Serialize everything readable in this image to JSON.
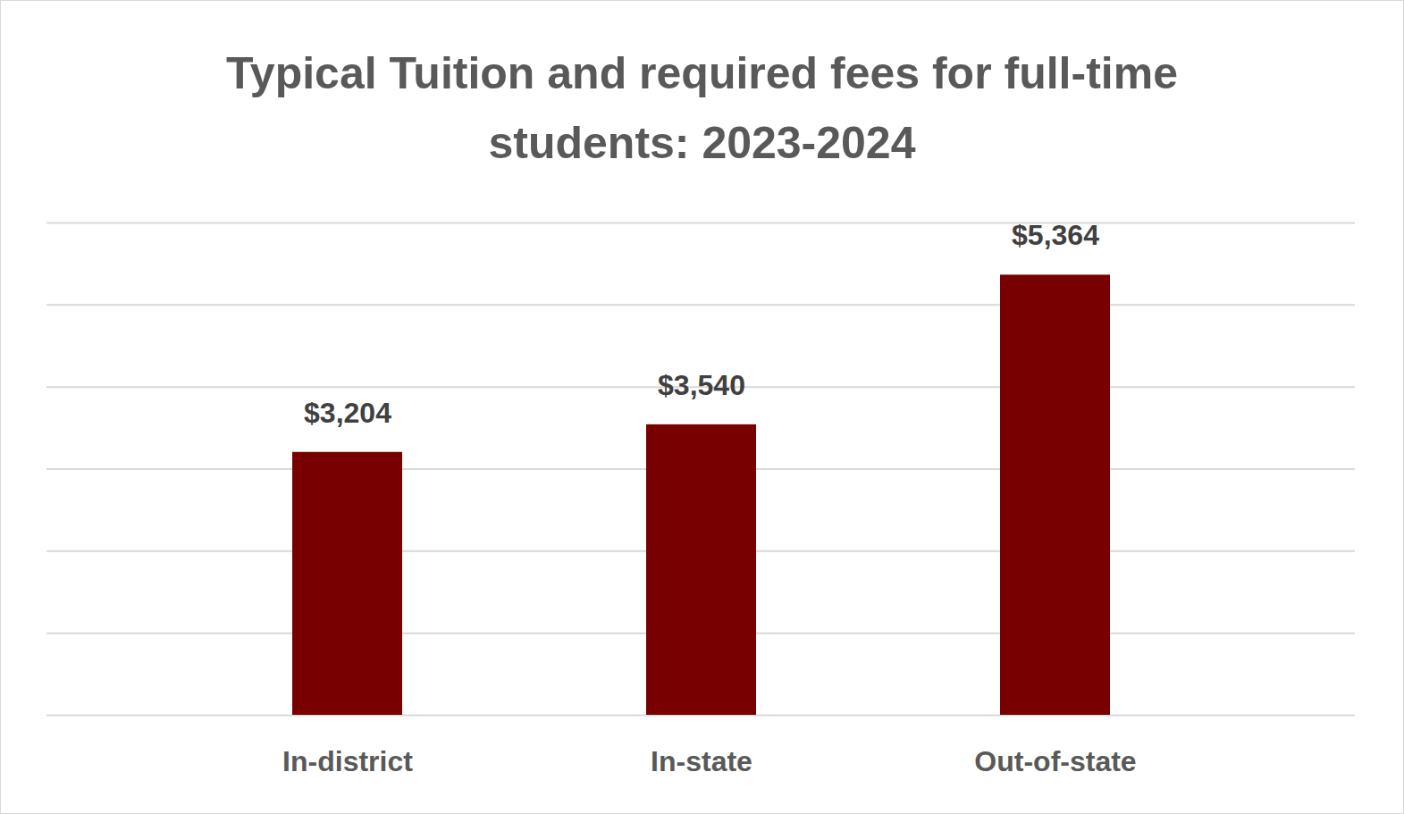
{
  "chart_data": {
    "type": "bar",
    "title": "Typical Tuition and required fees for full-time students: 2023-2024",
    "categories": [
      "In-district",
      "In-state",
      "Out-of-state"
    ],
    "values": [
      3204,
      3540,
      5364
    ],
    "value_labels": [
      "$3,204",
      "$3,540",
      "$5,364"
    ],
    "color": "#780000",
    "ylim": [
      0,
      6000
    ],
    "yticks": [
      0,
      1000,
      2000,
      3000,
      4000,
      5000,
      6000
    ],
    "grid": true,
    "data_labels": true,
    "tick_labels": "x"
  }
}
